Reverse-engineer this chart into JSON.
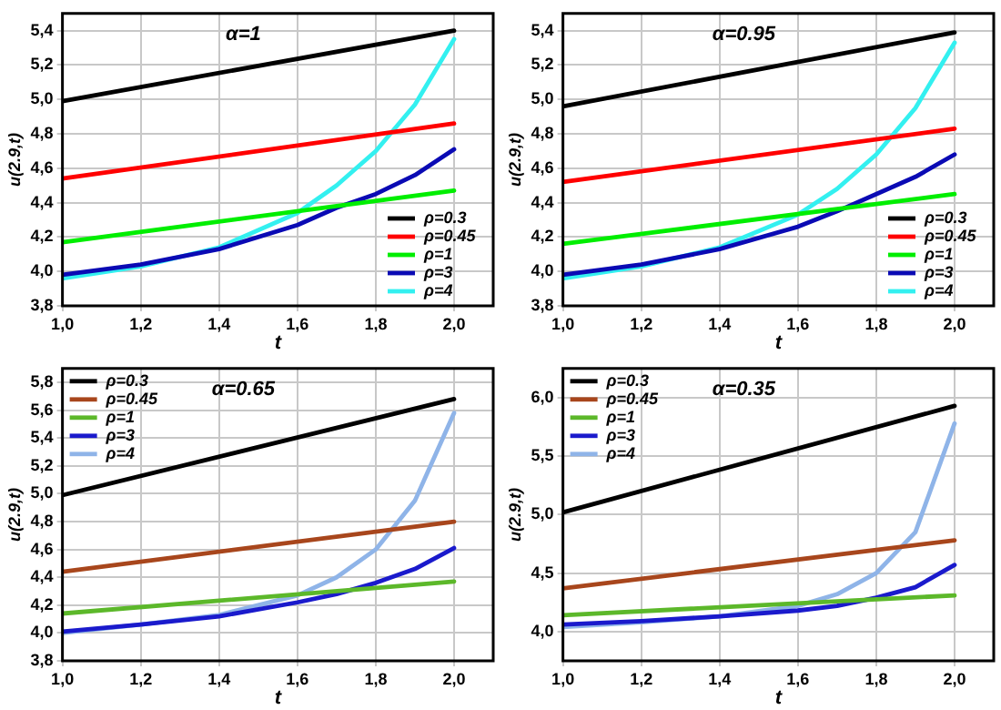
{
  "chart_data": [
    {
      "type": "line",
      "title": "α=1",
      "xlabel": "t",
      "ylabel": "u(2.9,t)",
      "xlim": [
        1.0,
        2.1
      ],
      "xticks": [
        {
          "value": 1.0,
          "label": "1,0"
        },
        {
          "value": 1.2,
          "label": "1,2"
        },
        {
          "value": 1.4,
          "label": "1,4"
        },
        {
          "value": 1.6,
          "label": "1,6"
        },
        {
          "value": 1.8,
          "label": "1,8"
        },
        {
          "value": 2.0,
          "label": "2,0"
        }
      ],
      "ylim": [
        3.8,
        5.5
      ],
      "yticks": [
        {
          "value": 3.8,
          "label": "3,8"
        },
        {
          "value": 4.0,
          "label": "4,0"
        },
        {
          "value": 4.2,
          "label": "4,2"
        },
        {
          "value": 4.4,
          "label": "4,4"
        },
        {
          "value": 4.6,
          "label": "4,6"
        },
        {
          "value": 4.8,
          "label": "4,8"
        },
        {
          "value": 5.0,
          "label": "5,0"
        },
        {
          "value": 5.2,
          "label": "5,2"
        },
        {
          "value": 5.4,
          "label": "5,4"
        }
      ],
      "grid": true,
      "legend": "bottom right",
      "marker": "none",
      "line_style": "solid",
      "series": [
        {
          "name": "ρ=0.3",
          "color": "#000000",
          "x": [
            1.0,
            2.0
          ],
          "values": [
            4.99,
            5.4
          ]
        },
        {
          "name": "ρ=0.45",
          "color": "#ff0000",
          "x": [
            1.0,
            2.0
          ],
          "values": [
            4.54,
            4.86
          ]
        },
        {
          "name": "ρ=1",
          "color": "#00ee00",
          "x": [
            1.0,
            2.0
          ],
          "values": [
            4.17,
            4.47
          ]
        },
        {
          "name": "ρ=3",
          "color": "#0a0ab4",
          "x": [
            1.0,
            1.2,
            1.4,
            1.6,
            1.7,
            1.8,
            1.9,
            2.0
          ],
          "values": [
            3.98,
            4.04,
            4.13,
            4.27,
            4.37,
            4.45,
            4.56,
            4.71
          ]
        },
        {
          "name": "ρ=4",
          "color": "#33f0f0",
          "x": [
            1.0,
            1.2,
            1.4,
            1.6,
            1.7,
            1.8,
            1.9,
            2.0
          ],
          "values": [
            3.96,
            4.03,
            4.14,
            4.34,
            4.5,
            4.7,
            4.97,
            5.35
          ]
        }
      ]
    },
    {
      "type": "line",
      "title": "α=0.95",
      "xlabel": "t",
      "ylabel": "u(2.9,t)",
      "xlim": [
        1.0,
        2.1
      ],
      "xticks": [
        {
          "value": 1.0,
          "label": "1,0"
        },
        {
          "value": 1.2,
          "label": "1,2"
        },
        {
          "value": 1.4,
          "label": "1,4"
        },
        {
          "value": 1.6,
          "label": "1,6"
        },
        {
          "value": 1.8,
          "label": "1,8"
        },
        {
          "value": 2.0,
          "label": "2,0"
        }
      ],
      "ylim": [
        3.8,
        5.5
      ],
      "yticks": [
        {
          "value": 3.8,
          "label": "3,8"
        },
        {
          "value": 4.0,
          "label": "4,0"
        },
        {
          "value": 4.2,
          "label": "4,2"
        },
        {
          "value": 4.4,
          "label": "4,4"
        },
        {
          "value": 4.6,
          "label": "4,6"
        },
        {
          "value": 4.8,
          "label": "4,8"
        },
        {
          "value": 5.0,
          "label": "5,0"
        },
        {
          "value": 5.2,
          "label": "5,2"
        },
        {
          "value": 5.4,
          "label": "5,4"
        }
      ],
      "grid": true,
      "legend": "bottom right",
      "marker": "none",
      "line_style": "solid",
      "series": [
        {
          "name": "ρ=0.3",
          "color": "#000000",
          "x": [
            1.0,
            2.0
          ],
          "values": [
            4.96,
            5.39
          ]
        },
        {
          "name": "ρ=0.45",
          "color": "#ff0000",
          "x": [
            1.0,
            2.0
          ],
          "values": [
            4.52,
            4.83
          ]
        },
        {
          "name": "ρ=1",
          "color": "#00ee00",
          "x": [
            1.0,
            2.0
          ],
          "values": [
            4.16,
            4.45
          ]
        },
        {
          "name": "ρ=3",
          "color": "#0a0ab4",
          "x": [
            1.0,
            1.2,
            1.4,
            1.6,
            1.7,
            1.8,
            1.9,
            2.0
          ],
          "values": [
            3.98,
            4.04,
            4.13,
            4.26,
            4.35,
            4.45,
            4.55,
            4.68
          ]
        },
        {
          "name": "ρ=4",
          "color": "#33f0f0",
          "x": [
            1.0,
            1.2,
            1.4,
            1.6,
            1.7,
            1.8,
            1.9,
            2.0
          ],
          "values": [
            3.96,
            4.03,
            4.14,
            4.33,
            4.48,
            4.68,
            4.95,
            5.33
          ]
        }
      ]
    },
    {
      "type": "line",
      "title": "α=0.65",
      "xlabel": "t",
      "ylabel": "u(2.9,t)",
      "xlim": [
        1.0,
        2.1
      ],
      "xticks": [
        {
          "value": 1.0,
          "label": "1,0"
        },
        {
          "value": 1.2,
          "label": "1,2"
        },
        {
          "value": 1.4,
          "label": "1,4"
        },
        {
          "value": 1.6,
          "label": "1,6"
        },
        {
          "value": 1.8,
          "label": "1,8"
        },
        {
          "value": 2.0,
          "label": "2,0"
        }
      ],
      "ylim": [
        3.8,
        5.9
      ],
      "yticks": [
        {
          "value": 3.8,
          "label": "3,8"
        },
        {
          "value": 4.0,
          "label": "4,0"
        },
        {
          "value": 4.2,
          "label": "4,2"
        },
        {
          "value": 4.4,
          "label": "4,4"
        },
        {
          "value": 4.6,
          "label": "4,6"
        },
        {
          "value": 4.8,
          "label": "4,8"
        },
        {
          "value": 5.0,
          "label": "5,0"
        },
        {
          "value": 5.2,
          "label": "5,2"
        },
        {
          "value": 5.4,
          "label": "5,4"
        },
        {
          "value": 5.6,
          "label": "5,6"
        },
        {
          "value": 5.8,
          "label": "5,8"
        }
      ],
      "grid": true,
      "legend": "top left",
      "marker": "none",
      "line_style": "solid",
      "series": [
        {
          "name": "ρ=0.3",
          "color": "#000000",
          "x": [
            1.0,
            2.0
          ],
          "values": [
            4.99,
            5.68
          ]
        },
        {
          "name": "ρ=0.45",
          "color": "#a8461c",
          "x": [
            1.0,
            2.0
          ],
          "values": [
            4.44,
            4.8
          ]
        },
        {
          "name": "ρ=1",
          "color": "#5cb82a",
          "x": [
            1.0,
            2.0
          ],
          "values": [
            4.14,
            4.37
          ]
        },
        {
          "name": "ρ=3",
          "color": "#1a1acc",
          "x": [
            1.0,
            1.2,
            1.4,
            1.6,
            1.7,
            1.8,
            1.9,
            2.0
          ],
          "values": [
            4.01,
            4.06,
            4.12,
            4.22,
            4.28,
            4.36,
            4.46,
            4.61
          ]
        },
        {
          "name": "ρ=4",
          "color": "#8fb4e8",
          "x": [
            1.0,
            1.2,
            1.4,
            1.6,
            1.7,
            1.8,
            1.9,
            2.0
          ],
          "values": [
            4.0,
            4.06,
            4.13,
            4.27,
            4.4,
            4.6,
            4.95,
            5.58
          ]
        }
      ]
    },
    {
      "type": "line",
      "title": "α=0.35",
      "xlabel": "t",
      "ylabel": "u(2.9,t)",
      "xlim": [
        1.0,
        2.1
      ],
      "xticks": [
        {
          "value": 1.0,
          "label": "1,0"
        },
        {
          "value": 1.2,
          "label": "1,2"
        },
        {
          "value": 1.4,
          "label": "1,4"
        },
        {
          "value": 1.6,
          "label": "1,6"
        },
        {
          "value": 1.8,
          "label": "1,8"
        },
        {
          "value": 2.0,
          "label": "2,0"
        }
      ],
      "ylim": [
        3.75,
        6.25
      ],
      "yticks": [
        {
          "value": 4.0,
          "label": "4,0"
        },
        {
          "value": 4.5,
          "label": "4,5"
        },
        {
          "value": 5.0,
          "label": "5,0"
        },
        {
          "value": 5.5,
          "label": "5,5"
        },
        {
          "value": 6.0,
          "label": "6,0"
        }
      ],
      "grid": true,
      "legend": "top left",
      "marker": "none",
      "line_style": "solid",
      "series": [
        {
          "name": "ρ=0.3",
          "color": "#000000",
          "x": [
            1.0,
            2.0
          ],
          "values": [
            5.02,
            5.93
          ]
        },
        {
          "name": "ρ=0.45",
          "color": "#a8461c",
          "x": [
            1.0,
            2.0
          ],
          "values": [
            4.37,
            4.78
          ]
        },
        {
          "name": "ρ=1",
          "color": "#5cb82a",
          "x": [
            1.0,
            2.0
          ],
          "values": [
            4.14,
            4.31
          ]
        },
        {
          "name": "ρ=3",
          "color": "#1a1acc",
          "x": [
            1.0,
            1.2,
            1.4,
            1.6,
            1.7,
            1.8,
            1.9,
            2.0
          ],
          "values": [
            4.06,
            4.09,
            4.13,
            4.18,
            4.22,
            4.29,
            4.38,
            4.57
          ]
        },
        {
          "name": "ρ=4",
          "color": "#8fb4e8",
          "x": [
            1.0,
            1.2,
            1.4,
            1.6,
            1.7,
            1.8,
            1.9,
            2.0
          ],
          "values": [
            4.04,
            4.08,
            4.13,
            4.22,
            4.32,
            4.5,
            4.85,
            5.78
          ]
        }
      ]
    }
  ]
}
